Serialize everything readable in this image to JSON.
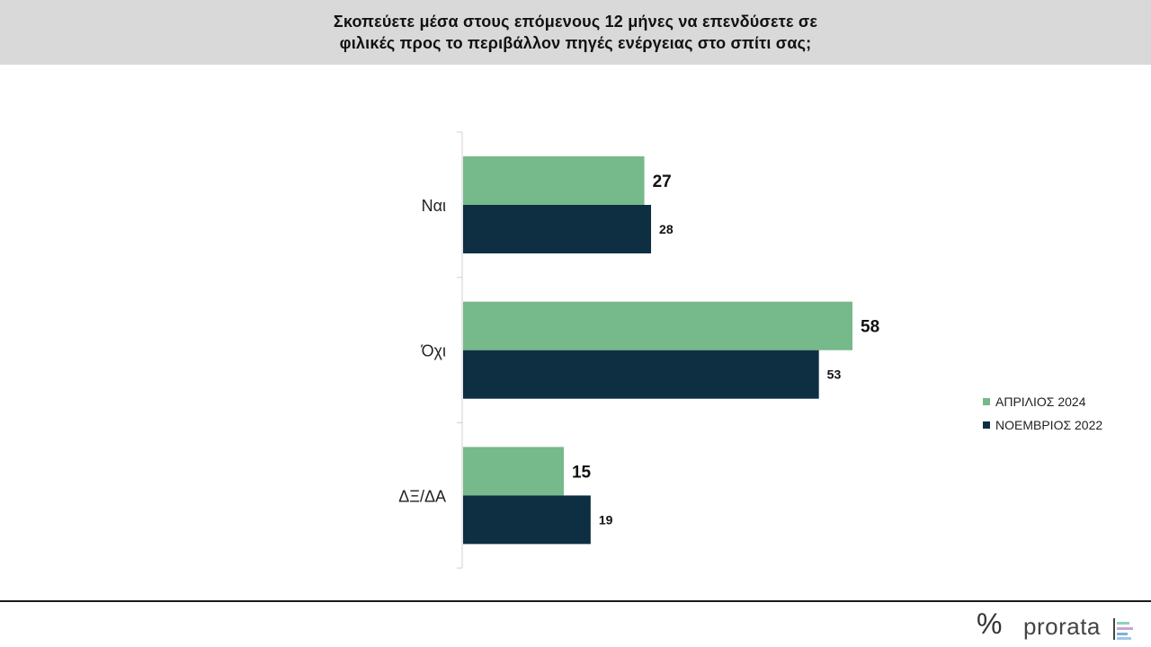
{
  "header": {
    "title_line1": "Σκοπεύετε μέσα στους επόμενους 12 μήνες να επενδύσετε σε",
    "title_line2": "φιλικές προς το περιβάλλον πηγές ενέργειας στο σπίτι σας;"
  },
  "chart_data": {
    "type": "bar",
    "orientation": "horizontal",
    "categories": [
      "Ναι",
      "Όχι",
      "ΔΞ/ΔΑ"
    ],
    "series": [
      {
        "name": "ΑΠΡΙΛΙΟΣ 2024",
        "values": [
          27,
          58,
          15
        ],
        "color": "#76b98b"
      },
      {
        "name": "ΝΟΕΜΒΡΙΟΣ 2022",
        "values": [
          28,
          53,
          19
        ],
        "color": "#0e2f42"
      }
    ],
    "grid": false,
    "legend_position": "right"
  },
  "legend": {
    "items": [
      {
        "label": "ΑΠΡΙΛΙΟΣ 2024",
        "color": "#76b98b"
      },
      {
        "label": "ΝΟΕΜΒΡΙΟΣ 2022",
        "color": "#0e2f42"
      }
    ]
  },
  "logo": {
    "symbol": "%",
    "word": "prorata"
  }
}
